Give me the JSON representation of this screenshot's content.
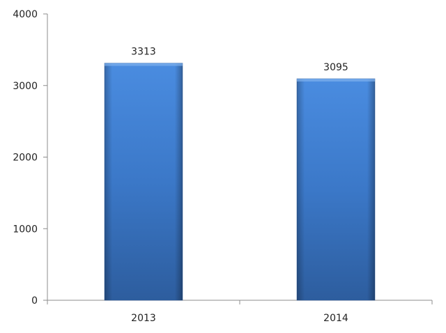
{
  "chart_data": {
    "type": "bar",
    "categories": [
      "2013",
      "2014"
    ],
    "values": [
      3313,
      3095
    ],
    "data_labels": [
      "3313",
      "3095"
    ],
    "title": "",
    "xlabel": "",
    "ylabel": "",
    "ylim": [
      0,
      4000
    ],
    "yticks": [
      "0",
      "1000",
      "2000",
      "3000",
      "4000"
    ],
    "grid": false,
    "legend": "none",
    "bar_color": "#3f7fd0",
    "bar_color_dark": "#2d5a99"
  }
}
